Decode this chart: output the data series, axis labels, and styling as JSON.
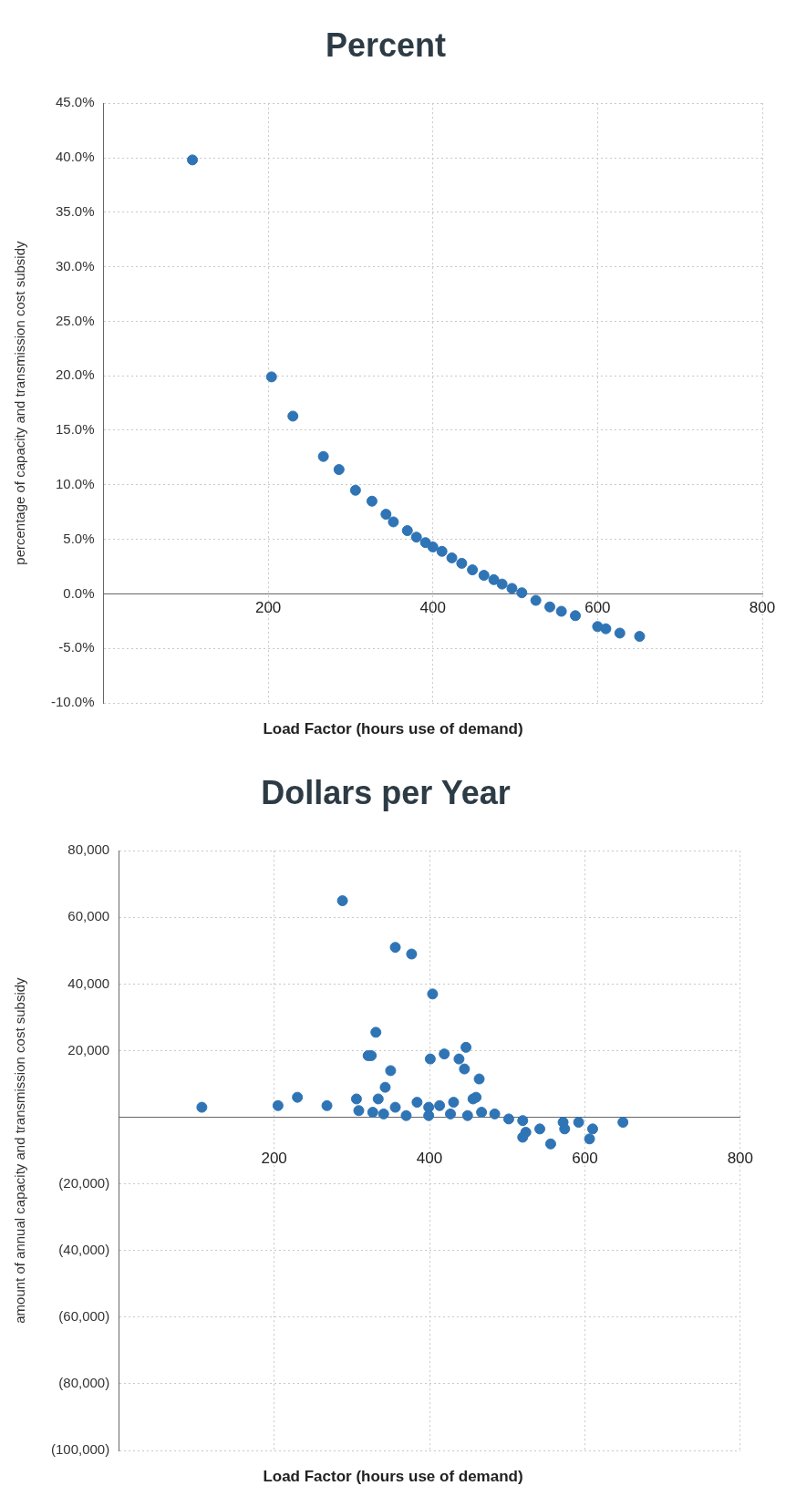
{
  "chart_data": [
    {
      "type": "scatter",
      "title": "Percent",
      "xlabel": "Load Factor (hours use of demand)",
      "ylabel": "percentage of capacity and transmission cost subsidy",
      "color": "#2f74b5",
      "marker": "circle",
      "grid": true,
      "x": [
        108,
        204,
        230,
        267,
        286,
        306,
        326,
        343,
        352,
        369,
        380,
        391,
        400,
        411,
        423,
        435,
        448,
        462,
        474,
        484,
        496,
        508,
        525,
        542,
        556,
        573,
        600,
        610,
        627,
        651
      ],
      "values": [
        39.8,
        19.9,
        16.3,
        12.6,
        11.4,
        9.5,
        8.5,
        7.3,
        6.6,
        5.8,
        5.2,
        4.7,
        4.3,
        3.9,
        3.3,
        2.8,
        2.2,
        1.7,
        1.3,
        0.9,
        0.5,
        0.1,
        -0.6,
        -1.2,
        -1.6,
        -2.0,
        -3.0,
        -3.2,
        -3.6,
        -3.9
      ],
      "xlim": [
        0,
        800
      ],
      "xticks": [
        200,
        400,
        600,
        800
      ],
      "ylim": [
        -10,
        45
      ],
      "yticks": [
        {
          "value": -10,
          "label": "-10.0%"
        },
        {
          "value": -5,
          "label": "-5.0%"
        },
        {
          "value": 0,
          "label": "0.0%"
        },
        {
          "value": 5,
          "label": "5.0%"
        },
        {
          "value": 10,
          "label": "10.0%"
        },
        {
          "value": 15,
          "label": "15.0%"
        },
        {
          "value": 20,
          "label": "20.0%"
        },
        {
          "value": 25,
          "label": "25.0%"
        },
        {
          "value": 30,
          "label": "30.0%"
        },
        {
          "value": 35,
          "label": "35.0%"
        },
        {
          "value": 40,
          "label": "40.0%"
        },
        {
          "value": 45,
          "label": "45.0%"
        }
      ]
    },
    {
      "type": "scatter",
      "title": "Dollars per Year",
      "xlabel": "Load Factor (hours use of demand)",
      "ylabel": "amount of annual capacity and transmission cost subsidy",
      "color": "#2f74b5",
      "marker": "circle",
      "grid": true,
      "x": [
        288,
        356,
        377,
        404,
        331,
        325,
        321,
        447,
        419,
        401,
        438,
        445,
        464,
        350,
        343,
        460,
        456,
        334,
        306,
        309,
        268,
        230,
        205,
        107,
        431,
        413,
        384,
        399,
        427,
        399,
        370,
        341,
        327,
        356,
        449,
        467,
        484,
        502,
        520,
        649,
        610,
        606,
        592,
        572,
        574,
        556,
        542,
        524,
        520
      ],
      "values": [
        65000,
        51000,
        49000,
        37000,
        25500,
        18500,
        18500,
        21000,
        19000,
        17500,
        17500,
        14500,
        11500,
        14000,
        9000,
        6000,
        5500,
        5500,
        5500,
        2000,
        3500,
        6000,
        3500,
        3000,
        4500,
        3500,
        4500,
        3000,
        1000,
        500,
        500,
        1000,
        1500,
        3000,
        500,
        1500,
        1000,
        -500,
        -1000,
        -1500,
        -3500,
        -6500,
        -1500,
        -1500,
        -3500,
        -8000,
        -3500,
        -4500,
        -6000
      ],
      "xlim": [
        0,
        800
      ],
      "xticks": [
        200,
        400,
        600,
        800
      ],
      "ylim": [
        -100000,
        80000
      ],
      "yticks": [
        {
          "value": -100000,
          "label": "(100,000)"
        },
        {
          "value": -80000,
          "label": "(80,000)"
        },
        {
          "value": -60000,
          "label": "(60,000)"
        },
        {
          "value": -40000,
          "label": "(40,000)"
        },
        {
          "value": -20000,
          "label": "(20,000)"
        },
        {
          "value": 0,
          "label": null
        },
        {
          "value": 20000,
          "label": "20,000"
        },
        {
          "value": 40000,
          "label": "40,000"
        },
        {
          "value": 60000,
          "label": "60,000"
        },
        {
          "value": 80000,
          "label": "80,000"
        }
      ]
    }
  ]
}
